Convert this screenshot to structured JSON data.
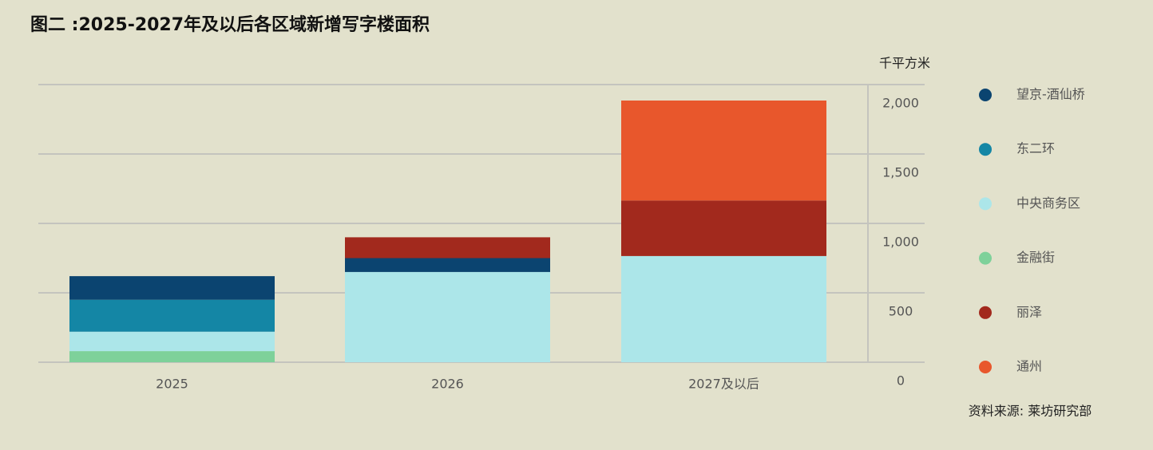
{
  "chart_data": {
    "type": "stacked_bar",
    "title": "图二 :2025-2027年及以后各区域新增写字楼面积",
    "y_axis_label": "千平方米",
    "source": "资料来源: 莱坊研究部",
    "categories": [
      "2025",
      "2026",
      "2027及以后"
    ],
    "series": [
      {
        "name": "金融街",
        "color": "#7ed19a",
        "values": [
          80,
          0,
          0
        ]
      },
      {
        "name": "中央商务区",
        "color": "#ace6e9",
        "values": [
          140,
          650,
          765
        ]
      },
      {
        "name": "东二环",
        "color": "#1486a5",
        "values": [
          230,
          0,
          0
        ]
      },
      {
        "name": "望京-酒仙桥",
        "color": "#0b4470",
        "values": [
          170,
          100,
          0
        ]
      },
      {
        "name": "丽泽",
        "color": "#a2291d",
        "values": [
          0,
          150,
          400
        ]
      },
      {
        "name": "通州",
        "color": "#e8572c",
        "values": [
          0,
          0,
          720
        ]
      }
    ],
    "ylim": [
      0,
      2000
    ],
    "yticks": [
      0,
      500,
      {
        "value": 1000,
        "label": "1,000"
      },
      {
        "value": 1500,
        "label": "1,500"
      },
      {
        "value": 2000,
        "label": "2,000"
      }
    ],
    "grid": true,
    "legend": "right"
  }
}
